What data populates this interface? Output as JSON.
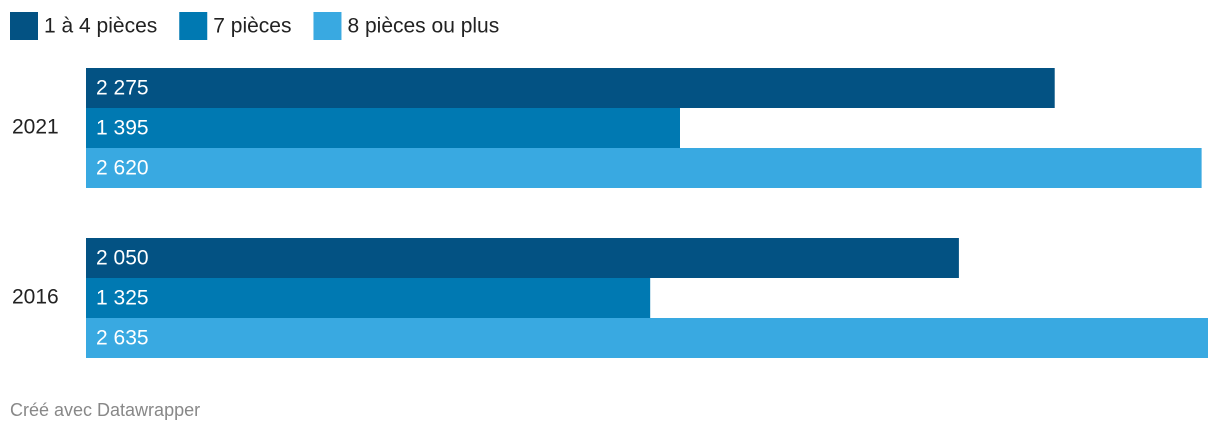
{
  "chart_data": {
    "type": "grouped-horizontal-bar",
    "categories": [
      "2021",
      "2016"
    ],
    "series": [
      {
        "name": "1 à 4 pièces",
        "color": "#035283",
        "values": [
          2275,
          2050
        ],
        "value_labels": [
          "2 275",
          "2 050"
        ]
      },
      {
        "name": "7 pièces",
        "color": "#0079b2",
        "values": [
          1395,
          1325
        ],
        "value_labels": [
          "1 395",
          "1 325"
        ]
      },
      {
        "name": "8 pièces ou plus",
        "color": "#39a9e1",
        "values": [
          2620,
          2635
        ],
        "value_labels": [
          "2 620",
          "2 635"
        ]
      }
    ],
    "credit": "Créé avec Datawrapper"
  }
}
